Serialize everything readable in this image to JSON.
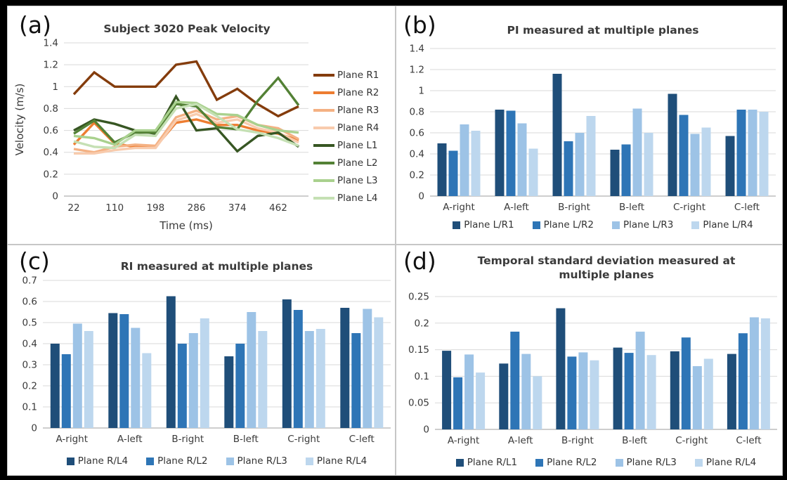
{
  "page": {
    "background": "#000000",
    "panel_background": "#ffffff",
    "panel_border": "#c6c6c6",
    "gridline_color": "#d9d9d9",
    "axis_line_color": "#b0b0b0",
    "text_color": "#3a3a3a"
  },
  "chart_data": [
    {
      "panel": "a",
      "corner_label": "(a)",
      "type": "line",
      "title": "Subject 3020 Peak Velocity",
      "xlabel": "Time (ms)",
      "ylabel": "Velocity (m/s)",
      "ylim": [
        0,
        1.4
      ],
      "ytick_labels": [
        "0",
        "0.2",
        "0.4",
        "0.6",
        "0.8",
        "1",
        "1.2",
        "1.4"
      ],
      "x": [
        22,
        66,
        110,
        154,
        198,
        242,
        286,
        330,
        374,
        418,
        462,
        506
      ],
      "x_tick_labels": [
        "22",
        "110",
        "198",
        "286",
        "374",
        "462"
      ],
      "x_tick_indices": [
        0,
        2,
        4,
        6,
        8,
        10
      ],
      "grid": true,
      "legend_position": "right",
      "series": [
        {
          "name": "Plane R1",
          "color": "#843C0C",
          "values": [
            0.93,
            1.13,
            1.0,
            1.0,
            1.0,
            1.2,
            1.23,
            0.88,
            0.98,
            0.84,
            0.73,
            0.82
          ]
        },
        {
          "name": "Plane R2",
          "color": "#ED7D31",
          "values": [
            0.47,
            0.67,
            0.48,
            0.45,
            0.45,
            0.67,
            0.7,
            0.65,
            0.65,
            0.6,
            0.57,
            0.51
          ]
        },
        {
          "name": "Plane R3",
          "color": "#F4B183",
          "values": [
            0.43,
            0.4,
            0.45,
            0.47,
            0.46,
            0.72,
            0.78,
            0.7,
            0.73,
            0.65,
            0.62,
            0.52
          ]
        },
        {
          "name": "Plane R4",
          "color": "#F8CBAD",
          "values": [
            0.39,
            0.39,
            0.42,
            0.44,
            0.44,
            0.69,
            0.75,
            0.67,
            0.7,
            0.62,
            0.58,
            0.49
          ]
        },
        {
          "name": "Plane L1",
          "color": "#375623",
          "values": [
            0.6,
            0.7,
            0.66,
            0.6,
            0.57,
            0.91,
            0.6,
            0.62,
            0.41,
            0.55,
            0.58,
            0.45
          ]
        },
        {
          "name": "Plane L2",
          "color": "#538135",
          "values": [
            0.57,
            0.69,
            0.49,
            0.58,
            0.58,
            0.84,
            0.82,
            0.63,
            0.61,
            0.87,
            1.08,
            0.83
          ]
        },
        {
          "name": "Plane L3",
          "color": "#A9D18E",
          "values": [
            0.55,
            0.53,
            0.47,
            0.6,
            0.6,
            0.86,
            0.85,
            0.75,
            0.74,
            0.65,
            0.6,
            0.58
          ]
        },
        {
          "name": "Plane L4",
          "color": "#C5E0B4",
          "values": [
            0.5,
            0.45,
            0.44,
            0.56,
            0.55,
            0.8,
            0.84,
            0.73,
            0.61,
            0.58,
            0.53,
            0.46
          ]
        }
      ]
    },
    {
      "panel": "b",
      "corner_label": "(b)",
      "type": "bar",
      "title": "PI measured at multiple planes",
      "ylim": [
        0,
        1.4
      ],
      "ytick_labels": [
        "0",
        "0.2",
        "0.4",
        "0.6",
        "0.8",
        "1",
        "1.2",
        "1.4"
      ],
      "categories": [
        "A-right",
        "A-left",
        "B-right",
        "B-left",
        "C-right",
        "C-left"
      ],
      "grid": true,
      "legend_position": "bottom",
      "series": [
        {
          "name": "Plane L/R1",
          "color": "#1F4E79",
          "values": [
            0.5,
            0.82,
            1.16,
            0.44,
            0.97,
            0.57
          ]
        },
        {
          "name": "Plane L/R2",
          "color": "#2E75B6",
          "values": [
            0.43,
            0.81,
            0.52,
            0.49,
            0.77,
            0.82
          ]
        },
        {
          "name": "Plane L/R3",
          "color": "#9DC3E6",
          "values": [
            0.68,
            0.69,
            0.6,
            0.83,
            0.59,
            0.82
          ]
        },
        {
          "name": "Plane L/R4",
          "color": "#BDD7EE",
          "values": [
            0.62,
            0.45,
            0.76,
            0.6,
            0.65,
            0.8
          ]
        }
      ]
    },
    {
      "panel": "c",
      "corner_label": "(c)",
      "type": "bar",
      "title": "RI measured at multiple planes",
      "ylim": [
        0,
        0.7
      ],
      "ytick_labels": [
        "0",
        "0.1",
        "0.2",
        "0.3",
        "0.4",
        "0.5",
        "0.6",
        "0.7"
      ],
      "categories": [
        "A-right",
        "A-left",
        "B-right",
        "B-left",
        "C-right",
        "C-left"
      ],
      "grid": true,
      "legend_position": "bottom",
      "series": [
        {
          "name": "Plane R/L4",
          "color": "#1F4E79",
          "values": [
            0.4,
            0.545,
            0.625,
            0.34,
            0.61,
            0.57
          ]
        },
        {
          "name": "Plane R/L2",
          "color": "#2E75B6",
          "values": [
            0.35,
            0.54,
            0.4,
            0.4,
            0.56,
            0.45
          ]
        },
        {
          "name": "Plane R/L3",
          "color": "#9DC3E6",
          "values": [
            0.495,
            0.475,
            0.45,
            0.55,
            0.46,
            0.565
          ]
        },
        {
          "name": "Plane R/L4",
          "color": "#BDD7EE",
          "values": [
            0.46,
            0.355,
            0.52,
            0.46,
            0.47,
            0.525
          ]
        }
      ]
    },
    {
      "panel": "d",
      "corner_label": "(d)",
      "type": "bar",
      "title": "Temporal standard deviation measured at multiple planes",
      "ylim": [
        0,
        0.25
      ],
      "ytick_labels": [
        "0",
        "0.05",
        "0.1",
        "0.15",
        "0.2",
        "0.25"
      ],
      "categories": [
        "A-right",
        "A-left",
        "B-right",
        "B-left",
        "C-right",
        "C-left"
      ],
      "grid": true,
      "legend_position": "bottom",
      "series": [
        {
          "name": "Plane R/L1",
          "color": "#1F4E79",
          "values": [
            0.148,
            0.124,
            0.228,
            0.154,
            0.147,
            0.142
          ]
        },
        {
          "name": "Plane R/L2",
          "color": "#2E75B6",
          "values": [
            0.098,
            0.184,
            0.137,
            0.144,
            0.173,
            0.181
          ]
        },
        {
          "name": "Plane R/L3",
          "color": "#9DC3E6",
          "values": [
            0.141,
            0.142,
            0.145,
            0.184,
            0.119,
            0.211
          ]
        },
        {
          "name": "Plane R/L4",
          "color": "#BDD7EE",
          "values": [
            0.107,
            0.1,
            0.13,
            0.14,
            0.133,
            0.209
          ]
        }
      ]
    }
  ]
}
